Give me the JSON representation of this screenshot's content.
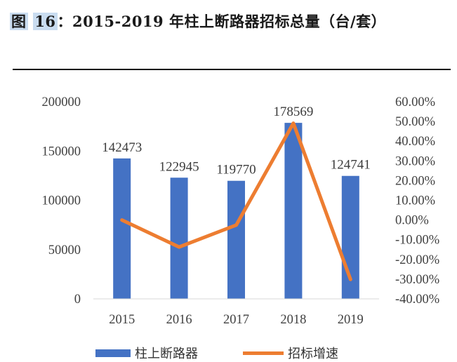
{
  "caption": {
    "prefix": "图",
    "number": "16",
    "text": "：2015-2019 年柱上断路器招标总量（台/套）"
  },
  "chart_data": {
    "type": "bar",
    "categories": [
      "2015",
      "2016",
      "2017",
      "2018",
      "2019"
    ],
    "series": [
      {
        "name": "柱上断路器",
        "type": "bar",
        "axis": "left",
        "color": "#4472c4",
        "values": [
          142473,
          122945,
          119770,
          178569,
          124741
        ]
      },
      {
        "name": "招标增速",
        "type": "line",
        "axis": "right",
        "color": "#ed7d31",
        "values": [
          0.0,
          -13.71,
          -2.58,
          49.09,
          -30.14
        ]
      }
    ],
    "y_left": {
      "min": 0,
      "max": 200000,
      "step": 50000,
      "tick_labels": [
        "0",
        "50000",
        "100000",
        "150000",
        "200000"
      ]
    },
    "y_right": {
      "min": -40,
      "max": 60,
      "step": 10,
      "tick_labels": [
        "-40.00%",
        "-30.00%",
        "-20.00%",
        "-10.00%",
        "0.00%",
        "10.00%",
        "20.00%",
        "30.00%",
        "40.00%",
        "50.00%",
        "60.00%"
      ]
    },
    "data_labels": [
      "142473",
      "122945",
      "119770",
      "178569",
      "124741"
    ],
    "legend_position": "bottom",
    "grid": false
  }
}
